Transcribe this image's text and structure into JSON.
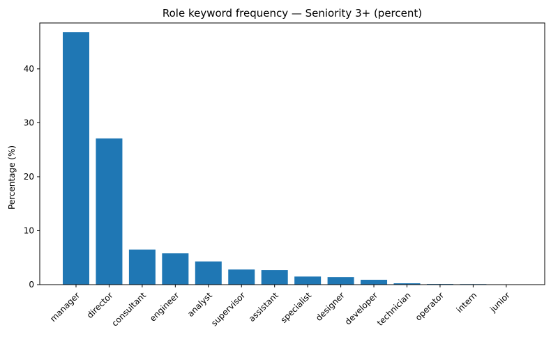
{
  "chart_data": {
    "type": "bar",
    "title": "Role keyword frequency — Seniority 3+ (percent)",
    "xlabel": "",
    "ylabel": "Percentage (%)",
    "categories": [
      "manager",
      "director",
      "consultant",
      "engineer",
      "analyst",
      "supervisor",
      "assistant",
      "specialist",
      "designer",
      "developer",
      "technician",
      "operator",
      "intern",
      "junior"
    ],
    "values": [
      46.8,
      27.1,
      6.5,
      5.8,
      4.3,
      2.8,
      2.7,
      1.5,
      1.4,
      0.9,
      0.25,
      0.12,
      0.1,
      0.02
    ],
    "ylim": [
      0,
      48.5
    ],
    "yticks": [
      0,
      10,
      20,
      30,
      40
    ],
    "grid": false,
    "bar_color": "#1f77b4"
  }
}
